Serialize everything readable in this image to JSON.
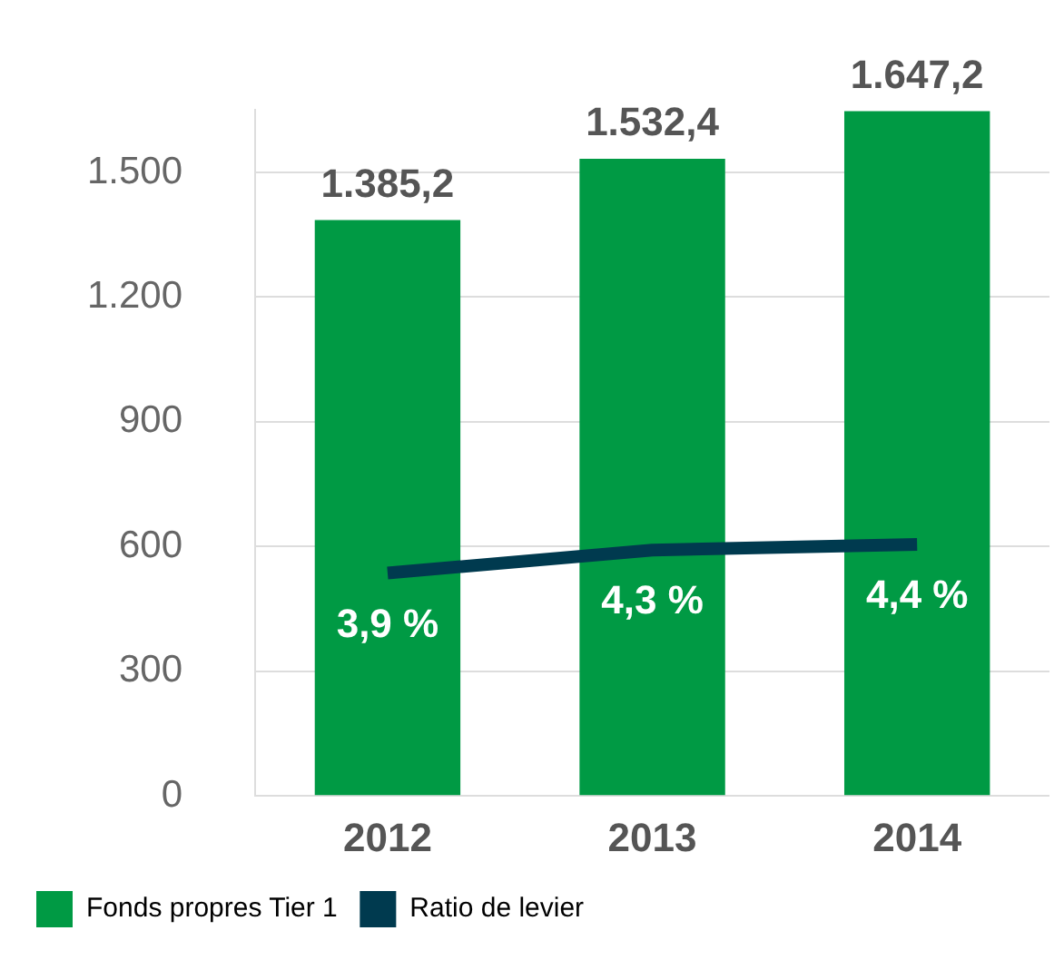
{
  "chart_data": {
    "type": "bar",
    "categories": [
      "2012",
      "2013",
      "2014"
    ],
    "series": [
      {
        "name": "Fonds propres Tier 1",
        "color": "#009a44",
        "values": [
          1385.2,
          1532.4,
          1647.2
        ],
        "value_labels": [
          "1.385,2",
          "1.532,4",
          "1.647,2"
        ]
      },
      {
        "name": "Ratio de levier",
        "type": "line",
        "axis": "y2",
        "color": "#003a4f",
        "values": [
          3.9,
          4.3,
          4.4
        ],
        "value_labels": [
          "3,9 %",
          "4,3 %",
          "4,4 %"
        ]
      }
    ],
    "ylim": [
      0,
      1650
    ],
    "yticks": [
      {
        "value": 0,
        "label": "0"
      },
      {
        "value": 300,
        "label": "300"
      },
      {
        "value": 600,
        "label": "600"
      },
      {
        "value": 900,
        "label": "900"
      },
      {
        "value": 1200,
        "label": "1.200"
      },
      {
        "value": 1500,
        "label": "1.500"
      }
    ],
    "tick_labels": "xy",
    "grid": "y",
    "legend": "bottom left",
    "marker": "none"
  }
}
